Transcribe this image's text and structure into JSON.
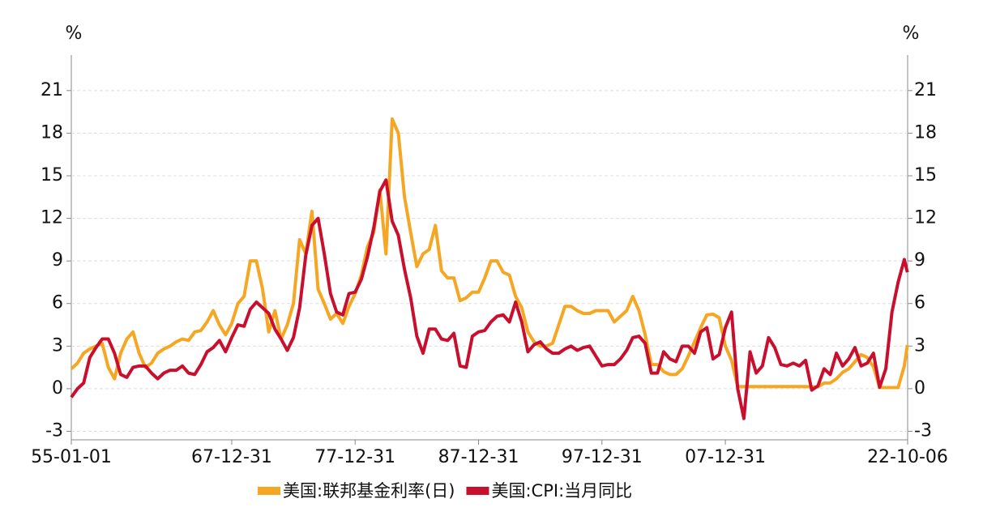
{
  "chart_data": {
    "type": "line",
    "ylabel": "%",
    "y2label": "%",
    "x": [
      1955,
      1955.5,
      1956,
      1956.5,
      1957,
      1957.5,
      1958,
      1958.5,
      1959,
      1959.5,
      1960,
      1960.5,
      1961,
      1961.5,
      1962,
      1962.5,
      1963,
      1963.5,
      1964,
      1964.5,
      1965,
      1965.5,
      1966,
      1966.5,
      1967,
      1967.5,
      1968,
      1968.5,
      1969,
      1969.5,
      1970,
      1970.5,
      1971,
      1971.5,
      1972,
      1972.5,
      1973,
      1973.5,
      1974,
      1974.5,
      1975,
      1975.5,
      1976,
      1976.5,
      1977,
      1977.5,
      1978,
      1978.5,
      1979,
      1979.5,
      1980,
      1980.5,
      1981,
      1981.5,
      1982,
      1982.5,
      1983,
      1983.5,
      1984,
      1984.5,
      1985,
      1985.5,
      1986,
      1986.5,
      1987,
      1987.5,
      1988,
      1988.5,
      1989,
      1989.5,
      1990,
      1990.5,
      1991,
      1991.5,
      1992,
      1992.5,
      1993,
      1993.5,
      1994,
      1994.5,
      1995,
      1995.5,
      1996,
      1996.5,
      1997,
      1997.5,
      1998,
      1998.5,
      1999,
      1999.5,
      2000,
      2000.5,
      2001,
      2001.5,
      2002,
      2002.5,
      2003,
      2003.5,
      2004,
      2004.5,
      2005,
      2005.5,
      2006,
      2006.5,
      2007,
      2007.5,
      2008,
      2008.5,
      2009,
      2009.5,
      2010,
      2010.5,
      2011,
      2011.5,
      2012,
      2012.5,
      2013,
      2013.5,
      2014,
      2014.5,
      2015,
      2015.5,
      2016,
      2016.5,
      2017,
      2017.5,
      2018,
      2018.5,
      2019,
      2019.5,
      2020,
      2020.5,
      2021,
      2021.5,
      2022,
      2022.5,
      2022.75
    ],
    "series": [
      {
        "name": "美国:联邦基金利率(日)",
        "color": "#f5a623",
        "values": [
          1.4,
          1.8,
          2.5,
          2.8,
          3.0,
          3.2,
          1.5,
          0.7,
          2.5,
          3.5,
          4.0,
          2.5,
          1.5,
          1.8,
          2.5,
          2.8,
          3.0,
          3.3,
          3.5,
          3.4,
          4.0,
          4.1,
          4.7,
          5.5,
          4.5,
          3.8,
          4.6,
          6.0,
          6.5,
          9.0,
          9.0,
          7.0,
          4.0,
          5.5,
          3.5,
          4.5,
          6.0,
          10.5,
          9.5,
          12.5,
          7.0,
          6.0,
          4.9,
          5.3,
          4.6,
          5.8,
          6.7,
          8.0,
          10.0,
          11.0,
          14.0,
          9.5,
          19.0,
          18.0,
          13.5,
          11.0,
          8.6,
          9.5,
          9.8,
          11.5,
          8.3,
          7.8,
          7.8,
          6.2,
          6.4,
          6.8,
          6.8,
          7.8,
          9.0,
          9.0,
          8.2,
          8.0,
          6.5,
          5.7,
          4.0,
          3.3,
          3.0,
          3.0,
          3.2,
          4.5,
          5.8,
          5.8,
          5.5,
          5.3,
          5.3,
          5.5,
          5.5,
          5.5,
          4.7,
          5.1,
          5.5,
          6.5,
          5.5,
          3.8,
          1.7,
          1.7,
          1.2,
          1.0,
          1.0,
          1.4,
          2.3,
          3.3,
          4.3,
          5.2,
          5.25,
          5.0,
          3.0,
          2.0,
          0.15,
          0.15,
          0.15,
          0.15,
          0.15,
          0.15,
          0.15,
          0.15,
          0.15,
          0.15,
          0.15,
          0.15,
          0.13,
          0.13,
          0.4,
          0.4,
          0.7,
          1.15,
          1.4,
          1.9,
          2.4,
          2.2,
          1.55,
          0.08,
          0.08,
          0.08,
          0.08,
          1.6,
          3.08
        ]
      },
      {
        "name": "美国:CPI:当月同比",
        "color": "#c8102e",
        "axis": "y2",
        "values": [
          -0.6,
          0.0,
          0.4,
          2.2,
          2.9,
          3.5,
          3.5,
          2.5,
          1.0,
          0.8,
          1.5,
          1.6,
          1.6,
          1.1,
          0.7,
          1.1,
          1.3,
          1.3,
          1.6,
          1.1,
          1.0,
          1.7,
          2.6,
          2.9,
          3.4,
          2.6,
          3.6,
          4.5,
          4.4,
          5.6,
          6.1,
          5.7,
          5.3,
          4.2,
          3.5,
          2.7,
          3.6,
          5.7,
          9.4,
          11.5,
          12.0,
          9.5,
          6.7,
          5.4,
          5.2,
          6.7,
          6.8,
          7.7,
          9.3,
          11.3,
          13.9,
          14.7,
          11.8,
          10.8,
          8.4,
          6.4,
          3.7,
          2.5,
          4.2,
          4.2,
          3.5,
          3.4,
          3.9,
          1.6,
          1.5,
          3.7,
          4.0,
          4.1,
          4.7,
          5.1,
          5.2,
          4.7,
          6.1,
          4.7,
          2.6,
          3.1,
          3.3,
          2.8,
          2.5,
          2.5,
          2.8,
          3.0,
          2.7,
          2.9,
          3.0,
          2.3,
          1.6,
          1.7,
          1.7,
          2.1,
          2.7,
          3.6,
          3.7,
          3.2,
          1.1,
          1.1,
          2.6,
          2.1,
          1.9,
          3.0,
          3.0,
          2.5,
          4.0,
          4.3,
          2.1,
          2.4,
          4.3,
          5.4,
          0.0,
          -2.1,
          2.6,
          1.1,
          1.6,
          3.6,
          2.9,
          1.7,
          1.6,
          1.8,
          1.6,
          2.0,
          -0.1,
          0.2,
          1.4,
          1.0,
          2.5,
          1.6,
          2.1,
          2.9,
          1.6,
          1.8,
          2.5,
          0.1,
          1.4,
          5.4,
          7.5,
          9.1,
          8.2
        ]
      }
    ],
    "xlim": [
      1955,
      2022.77
    ],
    "xticks": [
      {
        "value": 1955,
        "label": "55-01-01"
      },
      {
        "value": 1968,
        "label": "67-12-31"
      },
      {
        "value": 1978,
        "label": "77-12-31"
      },
      {
        "value": 1988,
        "label": "87-12-31"
      },
      {
        "value": 1998,
        "label": "97-12-31"
      },
      {
        "value": 2008,
        "label": "07-12-31"
      },
      {
        "value": 2022.77,
        "label": "22-10-06"
      }
    ],
    "ylim": [
      -3.6,
      23.5
    ],
    "yticks": [
      -3,
      0,
      3,
      6,
      9,
      12,
      15,
      18,
      21
    ],
    "y2lim": [
      -3.6,
      23.5
    ],
    "y2ticks": [
      -3,
      0,
      3,
      6,
      9,
      12,
      15,
      18,
      21
    ],
    "grid": true
  }
}
